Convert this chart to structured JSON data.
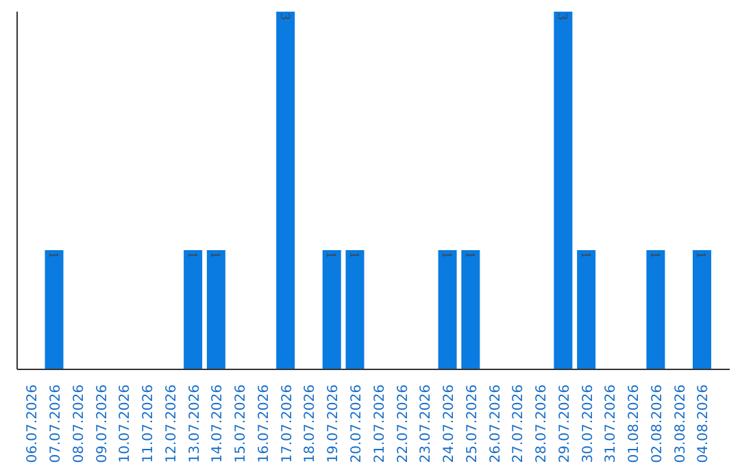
{
  "chart_data": {
    "type": "bar",
    "categories": [
      "06.07.2026",
      "07.07.2026",
      "08.07.2026",
      "09.07.2026",
      "10.07.2026",
      "11.07.2026",
      "12.07.2026",
      "13.07.2026",
      "14.07.2026",
      "15.07.2026",
      "16.07.2026",
      "17.07.2026",
      "18.07.2026",
      "19.07.2026",
      "20.07.2026",
      "21.07.2026",
      "22.07.2026",
      "23.07.2026",
      "24.07.2026",
      "25.07.2026",
      "26.07.2026",
      "27.07.2026",
      "28.07.2026",
      "29.07.2026",
      "30.07.2026",
      "31.07.2026",
      "01.08.2026",
      "02.08.2026",
      "03.08.2026",
      "04.08.2026"
    ],
    "values": [
      0,
      1,
      0,
      0,
      0,
      0,
      0,
      1,
      1,
      0,
      0,
      3,
      0,
      1,
      1,
      0,
      0,
      0,
      1,
      1,
      0,
      0,
      0,
      3,
      1,
      0,
      0,
      1,
      0,
      1
    ],
    "value_labels": [
      null,
      "1",
      null,
      null,
      null,
      null,
      null,
      "1",
      "1",
      null,
      null,
      "3",
      null,
      "1",
      "1",
      null,
      null,
      null,
      "1",
      "1",
      null,
      null,
      null,
      "3",
      "1",
      null,
      null,
      "1",
      null,
      "1"
    ],
    "color": "#0a7be0",
    "ylim": [
      0,
      3
    ],
    "tick_labels": "x",
    "grid": false
  }
}
